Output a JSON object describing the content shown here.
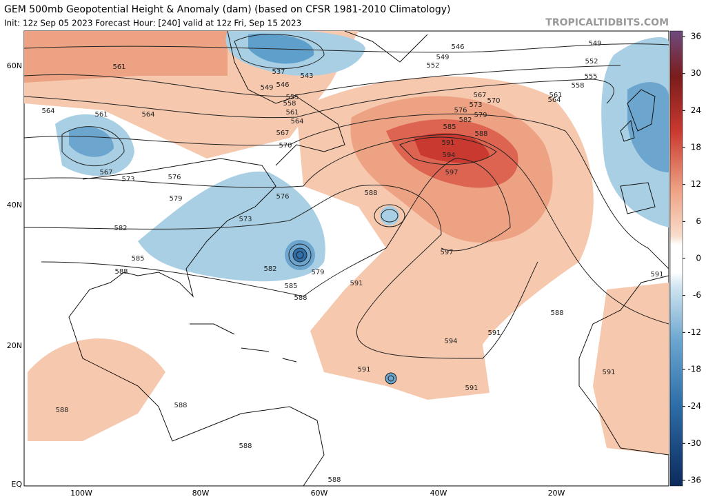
{
  "header": {
    "title": "GEM 500mb Geopotential Height & Anomaly (dam) (based on CFSR 1981-2010 Climatology)",
    "subtitle": "Init: 12z Sep 05 2023   Forecast Hour: [240]   valid at 12z Fri, Sep 15 2023",
    "site": "TROPICALTIDBITS.COM"
  },
  "map": {
    "lat_labels": [
      "60N",
      "40N",
      "20N",
      "EQ"
    ],
    "lon_labels": [
      "100W",
      "80W",
      "60W",
      "40W",
      "20W"
    ],
    "contour_labels": [
      "546",
      "549",
      "549",
      "552",
      "552",
      "555",
      "558",
      "561",
      "564",
      "570",
      "567",
      "573",
      "576",
      "579",
      "582",
      "585",
      "588",
      "591",
      "594",
      "597",
      "597",
      "588",
      "591",
      "594",
      "591",
      "591",
      "591",
      "588",
      "591",
      "591",
      "561",
      "564",
      "561",
      "564",
      "567",
      "573",
      "576",
      "579",
      "582",
      "585",
      "588",
      "573",
      "576",
      "579",
      "582",
      "585",
      "588",
      "570",
      "567",
      "564",
      "561",
      "558",
      "555",
      "549",
      "546",
      "537",
      "543",
      "588",
      "588",
      "588",
      "588"
    ]
  },
  "colorbar": {
    "ticks": [
      36,
      30,
      24,
      18,
      12,
      6,
      0,
      -6,
      -12,
      -18,
      -24,
      -30,
      -36
    ]
  }
}
